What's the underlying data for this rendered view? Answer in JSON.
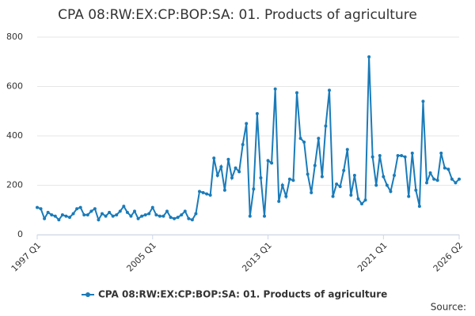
{
  "chart_data": {
    "type": "line",
    "title": "CPA 08:RW:EX:CP:BOP:SA: 01. Products of agriculture",
    "source": "Source:",
    "categories": [
      "1997 Q1",
      null,
      null,
      null,
      null,
      null,
      null,
      null,
      null,
      null,
      null,
      null,
      null,
      null,
      null,
      null,
      null,
      null,
      null,
      null,
      null,
      null,
      null,
      null,
      null,
      null,
      null,
      null,
      null,
      null,
      null,
      null,
      "2005 Q1",
      null,
      null,
      null,
      null,
      null,
      null,
      null,
      null,
      null,
      null,
      null,
      null,
      null,
      null,
      null,
      null,
      null,
      null,
      null,
      null,
      null,
      null,
      null,
      null,
      null,
      null,
      null,
      null,
      null,
      null,
      null,
      "2013 Q1",
      null,
      null,
      null,
      null,
      null,
      null,
      null,
      null,
      null,
      null,
      null,
      null,
      null,
      null,
      null,
      null,
      null,
      null,
      null,
      null,
      null,
      null,
      null,
      null,
      null,
      null,
      null,
      null,
      null,
      null,
      null,
      "2021 Q1",
      null,
      null,
      null,
      null,
      null,
      null,
      null,
      null,
      null,
      null,
      null,
      null,
      null,
      null,
      null,
      null,
      null,
      null,
      null,
      null,
      "2026 Q2"
    ],
    "series": [
      {
        "name": "CPA 08:RW:EX:CP:BOP:SA: 01. Products of agriculture",
        "color": "#1a7bb9",
        "values": [
          110,
          105,
          65,
          90,
          80,
          75,
          60,
          80,
          75,
          70,
          85,
          105,
          110,
          80,
          80,
          95,
          105,
          60,
          85,
          75,
          90,
          75,
          80,
          95,
          115,
          90,
          75,
          95,
          65,
          75,
          80,
          85,
          110,
          80,
          75,
          75,
          95,
          70,
          65,
          70,
          80,
          95,
          65,
          60,
          85,
          175,
          170,
          165,
          160,
          310,
          240,
          275,
          180,
          305,
          230,
          270,
          255,
          365,
          450,
          75,
          185,
          490,
          230,
          75,
          300,
          290,
          590,
          135,
          200,
          155,
          225,
          220,
          575,
          390,
          375,
          245,
          170,
          280,
          390,
          235,
          440,
          585,
          155,
          205,
          195,
          260,
          345,
          160,
          240,
          145,
          125,
          140,
          720,
          315,
          200,
          320,
          235,
          200,
          175,
          240,
          320,
          320,
          315,
          155,
          330,
          180,
          115,
          540,
          210,
          250,
          225,
          220,
          330,
          270,
          265,
          225,
          210,
          225
        ]
      }
    ],
    "ylim": [
      0,
      800
    ],
    "yticks": [
      0,
      200,
      400,
      600,
      800
    ],
    "grid": true,
    "legend": "bottom"
  }
}
